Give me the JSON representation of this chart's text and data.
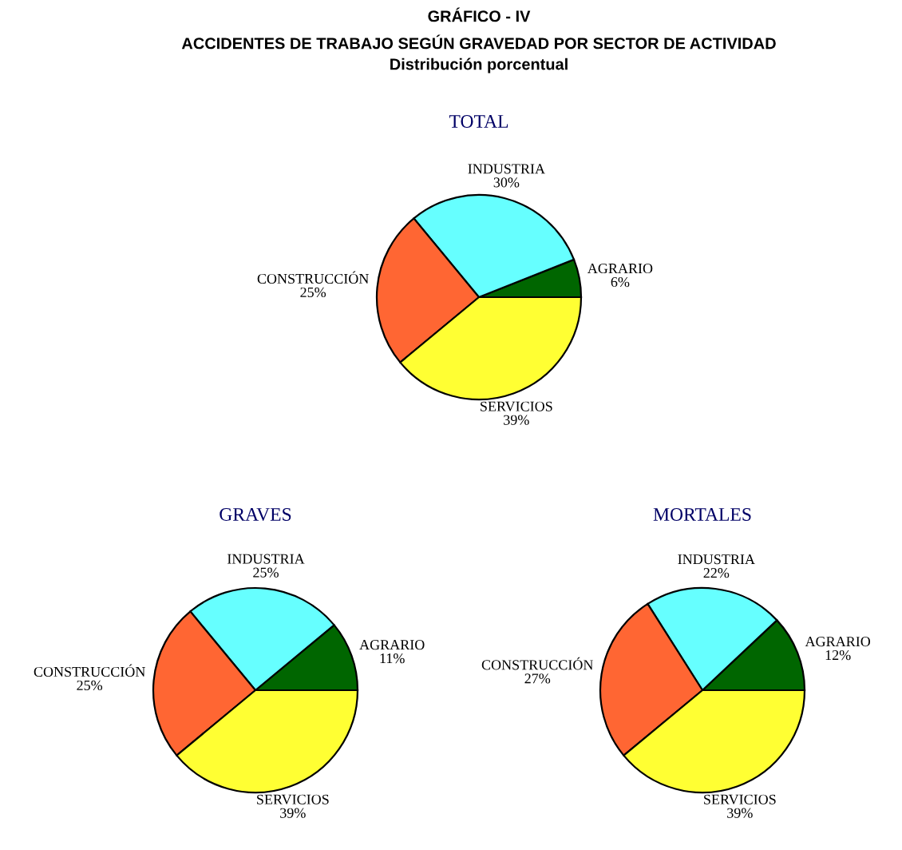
{
  "chart_data": [
    {
      "type": "other",
      "title": "GRÁFICO - IV",
      "subtitle": "ACCIDENTES DE TRABAJO SEGÚN GRAVEDAD POR SECTOR DE ACTIVIDAD",
      "annotations": [
        "Distribución porcentual"
      ]
    },
    {
      "type": "pie",
      "title": "TOTAL",
      "categories": [
        "AGRARIO",
        "INDUSTRIA",
        "CONSTRUCCIÓN",
        "SERVICIOS"
      ],
      "values": [
        6,
        30,
        25,
        39
      ],
      "colors": [
        "#006600",
        "#66ffff",
        "#ff6633",
        "#ffff33"
      ],
      "value_labels": [
        "6%",
        "30%",
        "25%",
        "39%"
      ]
    },
    {
      "type": "pie",
      "title": "GRAVES",
      "categories": [
        "AGRARIO",
        "INDUSTRIA",
        "CONSTRUCCIÓN",
        "SERVICIOS"
      ],
      "values": [
        11,
        25,
        25,
        39
      ],
      "colors": [
        "#006600",
        "#66ffff",
        "#ff6633",
        "#ffff33"
      ],
      "value_labels": [
        "11%",
        "25%",
        "25%",
        "39%"
      ]
    },
    {
      "type": "pie",
      "title": "MORTALES",
      "categories": [
        "AGRARIO",
        "INDUSTRIA",
        "CONSTRUCCIÓN",
        "SERVICIOS"
      ],
      "values": [
        12,
        22,
        27,
        39
      ],
      "colors": [
        "#006600",
        "#66ffff",
        "#ff6633",
        "#ffff33"
      ],
      "value_labels": [
        "12%",
        "22%",
        "27%",
        "39%"
      ]
    }
  ]
}
